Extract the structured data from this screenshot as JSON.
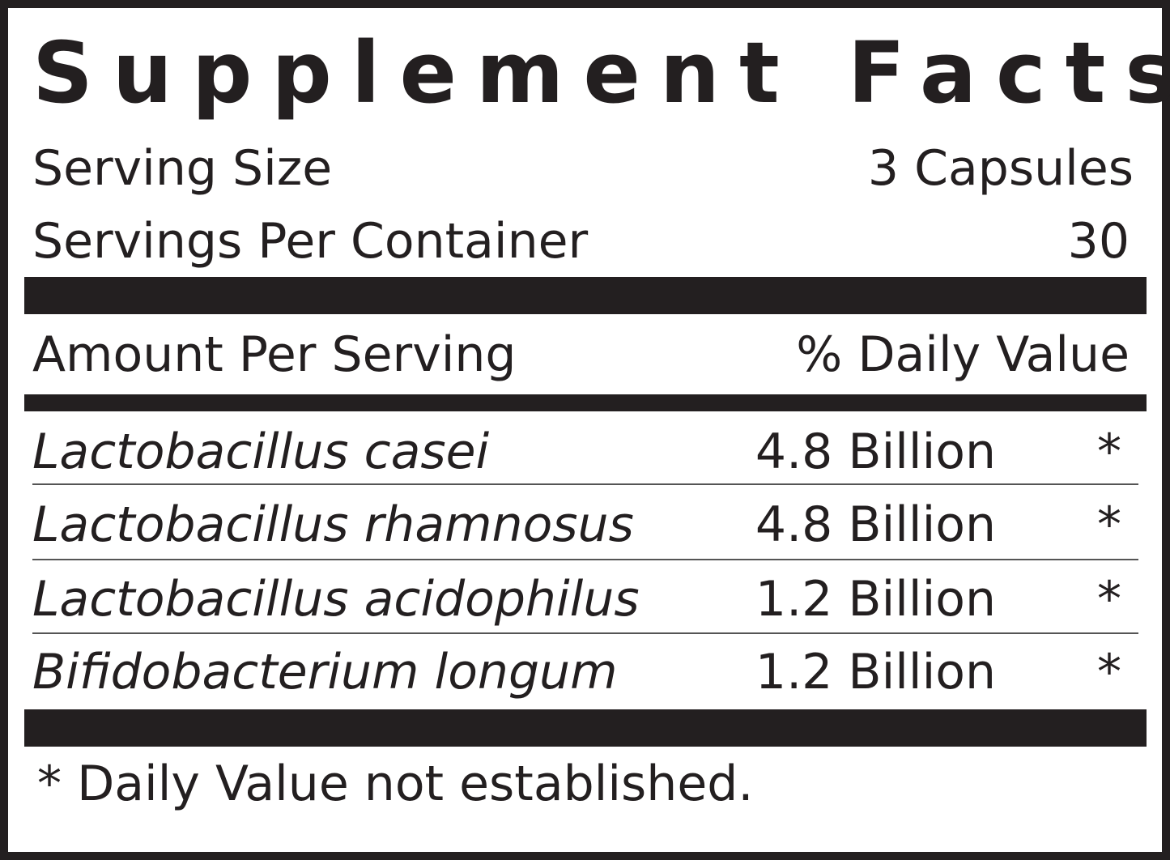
{
  "title": "Supplement Facts",
  "serving_size": {
    "label": "Serving Size",
    "value": "3 Capsules"
  },
  "servings_per_container": {
    "label": "Servings Per Container",
    "value": "30"
  },
  "header": {
    "amount": "Amount Per Serving",
    "daily_value": "% Daily Value"
  },
  "rows": [
    {
      "name": "Lactobacillus casei",
      "amount": "4.8 Billion",
      "dv": "*"
    },
    {
      "name": "Lactobacillus rhamnosus",
      "amount": "4.8 Billion",
      "dv": "*"
    },
    {
      "name": "Lactobacillus acidophilus",
      "amount": "1.2 Billion",
      "dv": "*"
    },
    {
      "name": "Bifidobacterium longum",
      "amount": "1.2 Billion",
      "dv": "*"
    }
  ],
  "footnote": "* Daily Value not established."
}
